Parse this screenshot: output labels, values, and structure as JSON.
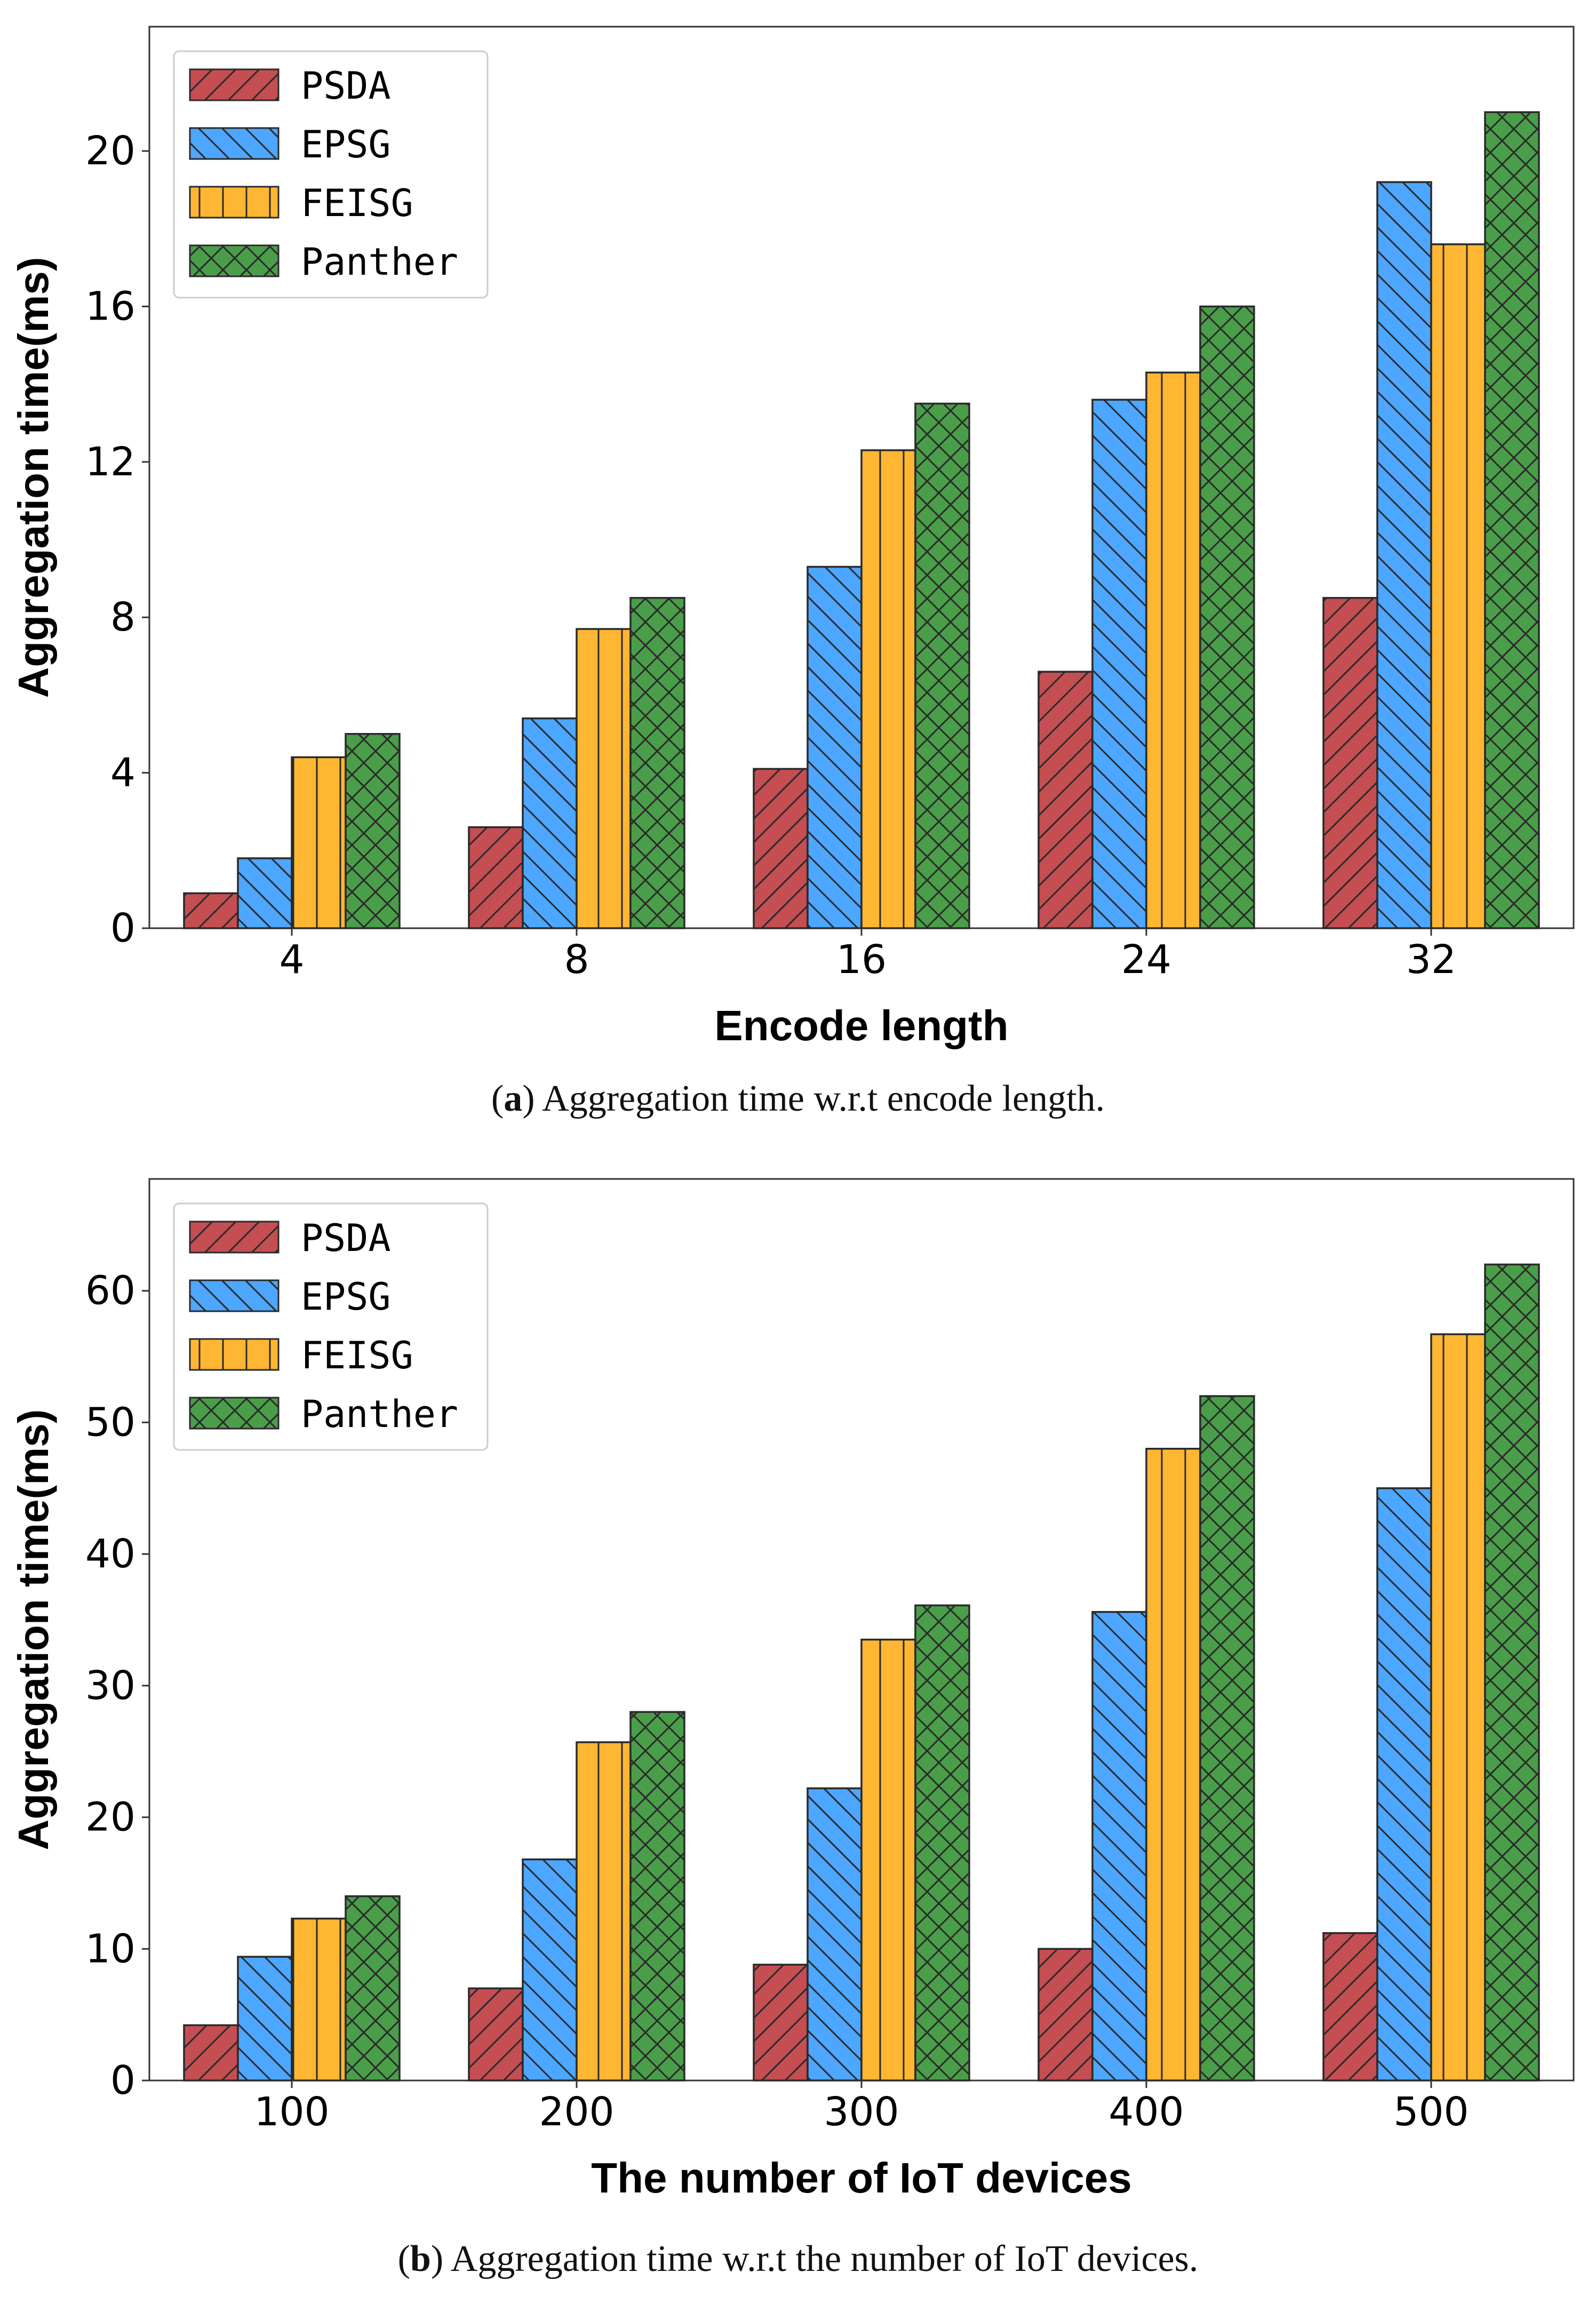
{
  "figures": [
    {
      "id": "a",
      "caption": {
        "open_paren": "(",
        "tag": "a",
        "rest": ") Aggregation time w.r.t encode length."
      }
    },
    {
      "id": "b",
      "caption": {
        "open_paren": "(",
        "tag": "b",
        "rest": ") Aggregation time w.r.t the number of IoT devices."
      }
    }
  ],
  "colors": {
    "PSDA": "#c44e52",
    "EPSG": "#4da6ff",
    "FEISG": "#ffb733",
    "Panther": "#4a9e4a",
    "outline": "#2a2a2a"
  },
  "chart_data": [
    {
      "type": "bar",
      "title": "",
      "xlabel": "Encode length",
      "ylabel": "Aggregation time(ms)",
      "categories": [
        "4",
        "8",
        "16",
        "24",
        "32"
      ],
      "ylim": [
        0,
        23.2
      ],
      "yticks": [
        0,
        4,
        8,
        12,
        16,
        20
      ],
      "legend": "top-left",
      "grid": false,
      "series": [
        {
          "name": "PSDA",
          "hatch": "forward-diagonal",
          "values": [
            0.9,
            2.6,
            4.1,
            6.6,
            8.5
          ]
        },
        {
          "name": "EPSG",
          "hatch": "back-diagonal",
          "values": [
            1.8,
            5.4,
            9.3,
            13.6,
            19.2
          ]
        },
        {
          "name": "FEISG",
          "hatch": "vertical",
          "values": [
            4.4,
            7.7,
            12.3,
            14.3,
            17.6
          ]
        },
        {
          "name": "Panther",
          "hatch": "cross",
          "values": [
            5.0,
            8.5,
            13.5,
            16.0,
            21.0
          ]
        }
      ]
    },
    {
      "type": "bar",
      "title": "",
      "xlabel": "The number of IoT devices",
      "ylabel": "Aggregation time(ms)",
      "categories": [
        "100",
        "200",
        "300",
        "400",
        "500"
      ],
      "ylim": [
        0,
        68.5
      ],
      "yticks": [
        0,
        10,
        20,
        30,
        40,
        50,
        60
      ],
      "legend": "top-left",
      "grid": false,
      "series": [
        {
          "name": "PSDA",
          "hatch": "forward-diagonal",
          "values": [
            4.2,
            7.0,
            8.8,
            10.0,
            11.2
          ]
        },
        {
          "name": "EPSG",
          "hatch": "back-diagonal",
          "values": [
            9.4,
            16.8,
            22.2,
            35.6,
            45.0
          ]
        },
        {
          "name": "FEISG",
          "hatch": "vertical",
          "values": [
            12.3,
            25.7,
            33.5,
            48.0,
            56.7
          ]
        },
        {
          "name": "Panther",
          "hatch": "cross",
          "values": [
            14.0,
            28.0,
            36.1,
            52.0,
            62.0
          ]
        }
      ]
    }
  ]
}
